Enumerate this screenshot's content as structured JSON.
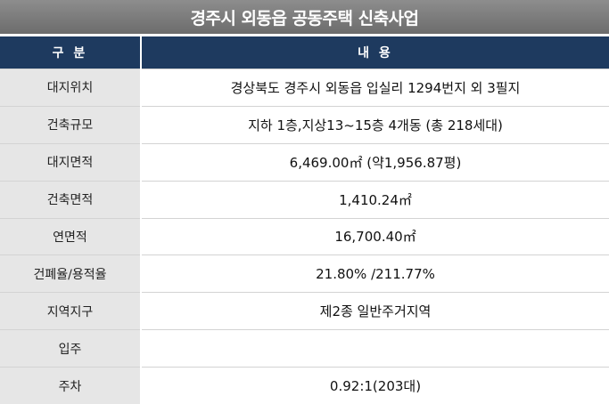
{
  "title": "경주시 외동읍 공동주택 신축사업",
  "header": {
    "col1": "구 분",
    "col2": "내 용"
  },
  "rows": [
    {
      "label": "대지위치",
      "value": "경상북도 경주시 외동읍 입실리 1294번지 외 3필지"
    },
    {
      "label": "건축규모",
      "value": "지하 1층,지상13~15층 4개동 (총 218세대)"
    },
    {
      "label": "대지면적",
      "value": "6,469.00㎡ (약1,956.87평)"
    },
    {
      "label": "건축면적",
      "value": "1,410.24㎡"
    },
    {
      "label": "연면적",
      "value": "16,700.40㎡"
    },
    {
      "label": "건폐율/용적율",
      "value": "21.80% /211.77%"
    },
    {
      "label": "지역지구",
      "value": "제2종 일반주거지역"
    },
    {
      "label": "입주",
      "value": ""
    },
    {
      "label": "주차",
      "value": "0.92:1(203대)"
    }
  ]
}
